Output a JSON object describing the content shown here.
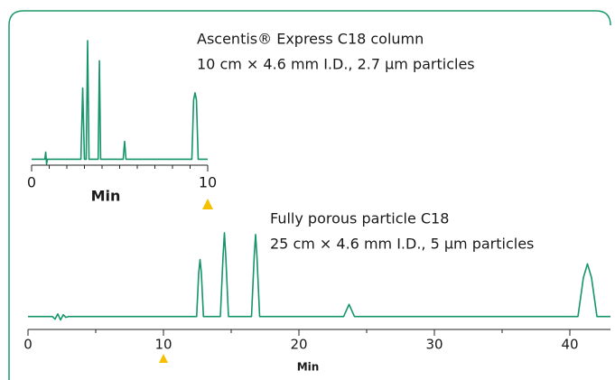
{
  "chart_data": [
    {
      "type": "line",
      "annotations": [
        "Ascentis® Express C18 column",
        "10 cm × 4.6 mm I.D., 2.7 µm particles"
      ],
      "x_label": "Min",
      "color": "#16956a",
      "marker_x": 10,
      "marker_color": "#f5c000",
      "xlim": [
        0,
        10
      ],
      "ylim": [
        -5,
        100
      ],
      "xticks": [
        0,
        10
      ],
      "minor_xticks": [
        1,
        2,
        3,
        4,
        5,
        6,
        7,
        8,
        9
      ],
      "x": [
        0,
        0.75,
        0.8,
        0.85,
        0.9,
        1.5,
        2.8,
        2.9,
        3.0,
        3.1,
        3.18,
        3.26,
        3.78,
        3.85,
        3.92,
        5.2,
        5.28,
        5.36,
        9.1,
        9.2,
        9.28,
        9.36,
        9.46,
        10
      ],
      "values": [
        0,
        0,
        6,
        -4,
        0,
        0,
        0,
        60,
        0,
        0,
        100,
        0,
        0,
        83,
        0,
        0,
        15,
        0,
        0,
        50,
        56,
        50,
        0,
        0
      ]
    },
    {
      "type": "line",
      "annotations": [
        "Fully porous particle C18",
        "25 cm × 4.6 mm I.D., 5 µm particles"
      ],
      "x_label": "Min",
      "color": "#16956a",
      "marker_x": 10,
      "marker_color": "#f5c000",
      "xlim": [
        0,
        43
      ],
      "ylim": [
        -15,
        100
      ],
      "xticks": [
        0,
        10,
        20,
        30,
        40
      ],
      "minor_xticks": [
        5,
        15,
        25,
        35
      ],
      "x": [
        0,
        1.8,
        2.0,
        2.2,
        2.4,
        2.6,
        2.8,
        3,
        12.45,
        12.6,
        12.7,
        12.8,
        12.95,
        14.2,
        14.4,
        14.5,
        14.6,
        14.8,
        16.5,
        16.7,
        16.8,
        16.9,
        17.1,
        23.3,
        23.7,
        24.1,
        40.6,
        41.0,
        41.3,
        41.6,
        42.0,
        43
      ],
      "values": [
        0,
        0,
        -3,
        3,
        -4,
        2,
        -1,
        0,
        0,
        50,
        66,
        50,
        0,
        0,
        70,
        97,
        70,
        0,
        0,
        70,
        95,
        70,
        0,
        0,
        14,
        0,
        0,
        45,
        61,
        45,
        0,
        0
      ]
    }
  ]
}
